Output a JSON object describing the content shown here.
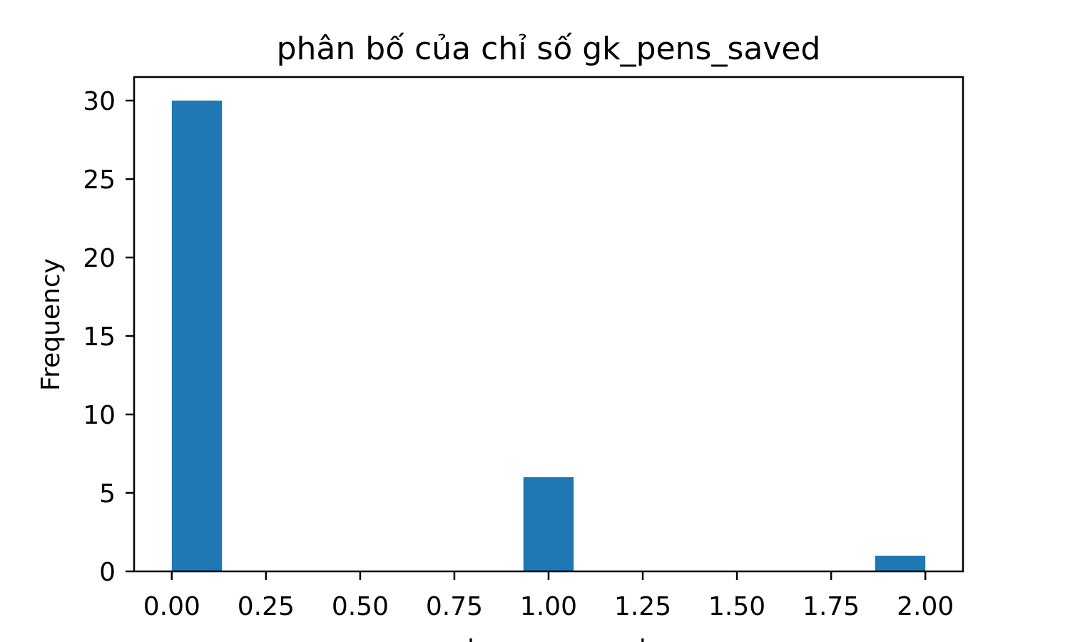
{
  "chart_data": {
    "type": "bar",
    "title": "phân bố của chỉ số gk_pens_saved",
    "xlabel": "gk_pens_saved",
    "ylabel": "Frequency",
    "xlim": [
      -0.1,
      2.1
    ],
    "ylim": [
      0,
      31.5
    ],
    "xticks": [
      "0.00",
      "0.25",
      "0.50",
      "0.75",
      "1.00",
      "1.25",
      "1.50",
      "1.75",
      "2.00"
    ],
    "xtick_values": [
      0,
      0.25,
      0.5,
      0.75,
      1.0,
      1.25,
      1.5,
      1.75,
      2.0
    ],
    "yticks": [
      "0",
      "5",
      "10",
      "15",
      "20",
      "25",
      "30"
    ],
    "ytick_values": [
      0,
      5,
      10,
      15,
      20,
      25,
      30
    ],
    "bins": [
      {
        "x0": 0.0,
        "x1": 0.1333,
        "count": 30
      },
      {
        "x0": 0.9333,
        "x1": 1.0667,
        "count": 6
      },
      {
        "x0": 1.8667,
        "x1": 2.0,
        "count": 1
      }
    ],
    "bar_color": "#1f77b4",
    "grid": false,
    "legend": "none"
  }
}
